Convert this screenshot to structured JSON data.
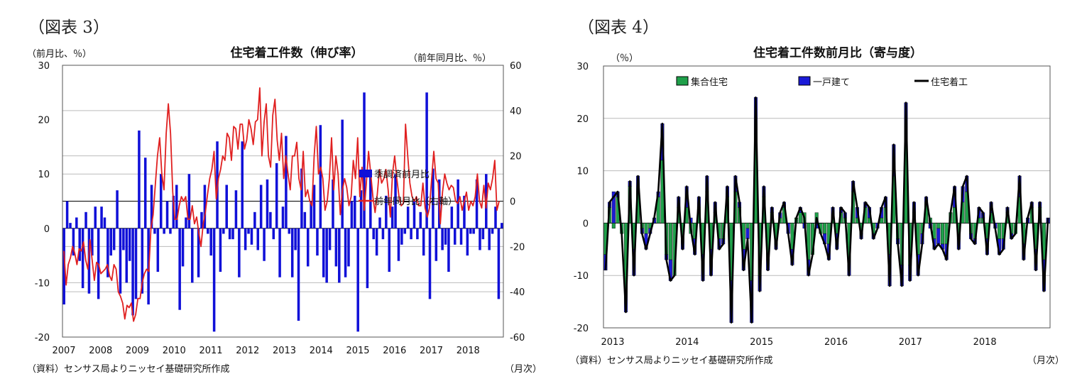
{
  "left_chart_data": {
    "type": "bar+line",
    "figure_label": "（図表 3）",
    "title": "住宅着工件数（伸び率）",
    "left_axis_label": "（前月比、％）",
    "right_axis_label": "（前年同月比、％）",
    "source": "（資料）センサス局よりニッセイ基礎研究所作成",
    "x_unit": "（月次）",
    "x_ticks": [
      "2007",
      "2008",
      "2009",
      "2010",
      "2011",
      "2012",
      "2013",
      "2014",
      "2015",
      "2016",
      "2017",
      "2018"
    ],
    "left_ticks": [
      "30",
      "20",
      "10",
      "0",
      "-10",
      "-20"
    ],
    "right_ticks": [
      "60",
      "40",
      "20",
      "0",
      "-20",
      "-40",
      "-60"
    ],
    "ylim_left": [
      -20,
      30
    ],
    "ylim_right": [
      -60,
      60
    ],
    "legend": [
      "季調済前月比",
      "前年同月比（右軸）"
    ],
    "colors": {
      "bar": "#1010d8",
      "line": "#e02020"
    },
    "bar_values": [
      -14,
      5,
      1,
      -5,
      2,
      -6,
      -11,
      3,
      -12,
      -5,
      4,
      -13,
      4,
      2,
      -9,
      -5,
      -4,
      7,
      -12,
      -4,
      -10,
      -6,
      -16,
      -13,
      18,
      -12,
      13,
      -14,
      8,
      -1,
      -8,
      10,
      -1,
      5,
      -1,
      6,
      8,
      -15,
      -7,
      2,
      10,
      -10,
      0,
      -9,
      3,
      8,
      -1,
      -5,
      -19,
      16,
      -8,
      -1,
      8,
      -2,
      -2,
      7,
      -9,
      16,
      -4,
      -1,
      -3,
      3,
      -4,
      8,
      -6,
      9,
      3,
      -2,
      12,
      -9,
      4,
      17,
      -1,
      -9,
      -4,
      -17,
      11,
      3,
      -7,
      5,
      8,
      -5,
      19,
      -9,
      -10,
      -4,
      9,
      -7,
      -10,
      20,
      -9,
      -7,
      5,
      6,
      -19,
      7,
      25,
      -11,
      10,
      -2,
      -5,
      2,
      -2,
      6,
      -8,
      4,
      10,
      -6,
      -3,
      -1,
      4,
      -2,
      5,
      -2,
      3,
      -5,
      25,
      -13,
      11,
      -6,
      9,
      -4,
      -3,
      -8,
      4,
      -3,
      9,
      -3,
      6,
      -5,
      -1,
      -1,
      9,
      -4,
      -2,
      10,
      -4,
      -1,
      4,
      -13,
      1
    ],
    "line_values": [
      -22,
      -37,
      -28,
      -25,
      -20,
      -23,
      -28,
      -21,
      -22,
      -18,
      -26,
      -30,
      -17,
      -26,
      -35,
      -27,
      -28,
      -32,
      -31,
      -30,
      -28,
      -33,
      -35,
      -28,
      -30,
      -40,
      -42,
      -45,
      -52,
      -46,
      -47,
      -45,
      -53,
      -50,
      -43,
      -43,
      -36,
      -32,
      -30,
      -31,
      -12,
      -6,
      7,
      20,
      28,
      12,
      5,
      30,
      43,
      30,
      4,
      -8,
      -8,
      -2,
      2,
      0,
      2,
      -8,
      -8,
      -2,
      -10,
      -7,
      -14,
      -20,
      -10,
      -5,
      3,
      10,
      14,
      22,
      1,
      10,
      14,
      20,
      18,
      30,
      28,
      18,
      33,
      32,
      23,
      34,
      34,
      23,
      27,
      36,
      32,
      25,
      35,
      36,
      50,
      20,
      35,
      43,
      20,
      15,
      38,
      45,
      27,
      18,
      30,
      10,
      20,
      12,
      5,
      20,
      20,
      26,
      10,
      5,
      22,
      2,
      5,
      0,
      -2,
      20,
      33,
      12,
      15,
      10,
      -4,
      0,
      10,
      28,
      5,
      20,
      12,
      -6,
      5,
      10,
      6,
      -2,
      2,
      18,
      10,
      28,
      2,
      15,
      -4,
      8,
      22,
      12,
      2,
      -5,
      3,
      14,
      8,
      10,
      14,
      5,
      -7,
      12,
      20,
      10,
      2,
      -2,
      -1,
      34,
      20,
      8,
      2,
      0,
      2,
      -2,
      -2,
      8,
      -3,
      -7,
      -3,
      10,
      22,
      10,
      8,
      -10,
      4,
      12,
      8,
      5,
      7,
      6,
      0,
      -1,
      2,
      -4,
      0,
      4,
      -4,
      0,
      -2,
      2,
      12,
      0,
      -3,
      7,
      -3,
      8,
      5,
      10,
      18,
      -4,
      0
    ]
  },
  "right_chart_data": {
    "type": "stacked-bar+line",
    "figure_label": "（図表 4）",
    "title": "住宅着工件数前月比（寄与度）",
    "y_unit": "（％）",
    "source": "（資料）センサス局よりニッセイ基礎研究所作成",
    "x_unit": "（月次）",
    "x_ticks": [
      "2013",
      "2014",
      "2015",
      "2016",
      "2017",
      "2018"
    ],
    "y_ticks": [
      "30",
      "20",
      "10",
      "0",
      "-10",
      "-20"
    ],
    "ylim": [
      -20,
      30
    ],
    "legend": [
      "集合住宅",
      "一戸建て",
      "住宅着工"
    ],
    "colors": {
      "multi": "#1fa04a",
      "single": "#1a1ad8",
      "total": "#000000"
    },
    "multi_values": [
      -6,
      3,
      -1,
      5,
      -2,
      -13,
      7,
      -5,
      6,
      -1,
      -2,
      -1,
      0,
      5,
      12,
      -6,
      -7,
      -10,
      3,
      -3,
      3,
      -2,
      -3,
      3,
      -6,
      6,
      -5,
      2,
      -3,
      -3,
      5,
      -11,
      6,
      3,
      -5,
      -1,
      -11,
      17,
      -10,
      5,
      -7,
      2,
      -4,
      1,
      3,
      0,
      -5,
      1,
      2,
      2,
      -7,
      -6,
      2,
      -2,
      -2,
      -4,
      1,
      -2,
      2,
      1,
      -7,
      6,
      1,
      -2,
      3,
      1,
      -2,
      0,
      1,
      3,
      -6,
      9,
      -3,
      -8,
      16,
      -8,
      2,
      -6,
      -2,
      4,
      1,
      -3,
      -1,
      -4,
      -4,
      2,
      3,
      -3,
      4,
      6,
      -2,
      -3,
      1,
      1,
      -3,
      2,
      0,
      -3,
      -3,
      2,
      -2,
      -2,
      5,
      -4,
      0,
      3,
      -5,
      3,
      -7,
      0
    ],
    "single_values": [
      -3,
      1,
      6,
      1,
      0,
      -4,
      1,
      -5,
      3,
      -1,
      -3,
      -1,
      1,
      1,
      7,
      -1,
      -4,
      0,
      2,
      -2,
      4,
      1,
      -3,
      2,
      -5,
      3,
      -5,
      2,
      -2,
      -1,
      2,
      -8,
      3,
      1,
      -4,
      -2,
      -8,
      7,
      -3,
      2,
      -2,
      1,
      -1,
      1,
      1,
      -2,
      -3,
      0,
      1,
      -1,
      -3,
      0,
      -1,
      0,
      -2,
      -3,
      2,
      -3,
      1,
      1,
      -3,
      2,
      2,
      -1,
      1,
      2,
      -1,
      -1,
      2,
      2,
      -6,
      6,
      -1,
      -4,
      7,
      -3,
      2,
      -4,
      -2,
      1,
      -1,
      -2,
      -3,
      -1,
      -3,
      0,
      4,
      -2,
      3,
      3,
      -1,
      -1,
      2,
      1,
      -3,
      2,
      -1,
      -3,
      -2,
      1,
      -1,
      0,
      4,
      -3,
      1,
      1,
      -4,
      1,
      -6,
      1
    ],
    "total_values": [
      -9,
      4,
      5,
      6,
      -2,
      -17,
      8,
      -10,
      9,
      -2,
      -5,
      -2,
      1,
      6,
      19,
      -7,
      -11,
      -10,
      5,
      -5,
      7,
      -1,
      -6,
      5,
      -11,
      9,
      -10,
      4,
      -5,
      -4,
      7,
      -19,
      9,
      4,
      -9,
      -3,
      -19,
      24,
      -13,
      7,
      -9,
      3,
      -5,
      2,
      4,
      -2,
      -8,
      1,
      3,
      1,
      -10,
      -6,
      1,
      -2,
      -4,
      -7,
      3,
      -5,
      3,
      2,
      -10,
      8,
      3,
      -3,
      4,
      3,
      -3,
      -1,
      3,
      5,
      -12,
      15,
      -4,
      -12,
      23,
      -11,
      4,
      -10,
      -4,
      5,
      0,
      -5,
      -4,
      -5,
      -7,
      2,
      7,
      -5,
      7,
      9,
      -3,
      -4,
      3,
      2,
      -6,
      4,
      -1,
      -6,
      -5,
      3,
      -3,
      -2,
      9,
      -7,
      1,
      4,
      -9,
      4,
      -13,
      1
    ]
  }
}
